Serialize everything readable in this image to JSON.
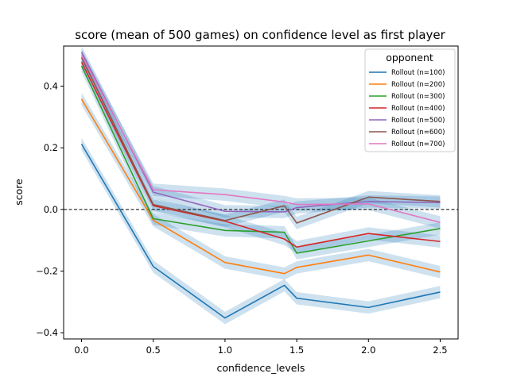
{
  "chart_data": {
    "type": "line",
    "title": "score (mean of 500 games) on confidence level as first player",
    "xlabel": "confidence_levels",
    "ylabel": "score",
    "xlim": [
      -0.125,
      2.625
    ],
    "ylim": [
      -0.42,
      0.53
    ],
    "xticks": [
      0.0,
      0.5,
      1.0,
      1.5,
      2.0,
      2.5
    ],
    "xtick_labels": [
      "0.0",
      "0.5",
      "1.0",
      "1.5",
      "2.0",
      "2.5"
    ],
    "yticks": [
      -0.4,
      -0.2,
      0.0,
      0.2,
      0.4
    ],
    "ytick_labels": [
      "−0.4",
      "−0.2",
      "0.0",
      "0.2",
      "0.4"
    ],
    "reference_line": {
      "y": 0.0,
      "style": "dashed",
      "color": "#000000"
    },
    "grid": false,
    "legend": {
      "title": "opponent",
      "placement": "top-right"
    },
    "x": [
      0.0,
      0.5,
      1.0,
      1.414,
      1.5,
      2.0,
      2.5
    ],
    "series": [
      {
        "name": "Rollout (n=100)",
        "color": "#1f77b4",
        "values": [
          0.212,
          -0.185,
          -0.352,
          -0.246,
          -0.288,
          -0.318,
          -0.268
        ]
      },
      {
        "name": "Rollout (n=200)",
        "color": "#ff7f0e",
        "values": [
          0.358,
          -0.035,
          -0.172,
          -0.208,
          -0.188,
          -0.148,
          -0.203
        ]
      },
      {
        "name": "Rollout (n=300)",
        "color": "#2ca02c",
        "values": [
          0.466,
          -0.03,
          -0.068,
          -0.074,
          -0.142,
          -0.102,
          -0.062
        ]
      },
      {
        "name": "Rollout (n=400)",
        "color": "#d62728",
        "values": [
          0.478,
          0.012,
          -0.038,
          -0.096,
          -0.122,
          -0.078,
          -0.104
        ]
      },
      {
        "name": "Rollout (n=500)",
        "color": "#9467bd",
        "values": [
          0.51,
          0.056,
          -0.006,
          -0.008,
          0.006,
          0.026,
          0.022
        ]
      },
      {
        "name": "Rollout (n=600)",
        "color": "#8c564b",
        "values": [
          0.493,
          0.016,
          -0.036,
          0.012,
          -0.044,
          0.04,
          0.026
        ]
      },
      {
        "name": "Rollout (n=700)",
        "color": "#e377c2",
        "values": [
          0.5,
          0.064,
          0.048,
          0.024,
          0.016,
          0.018,
          -0.042
        ]
      }
    ],
    "confidence_band": {
      "color": "#1f77b4",
      "opacity": 0.22,
      "halfwidth": 0.02
    }
  }
}
